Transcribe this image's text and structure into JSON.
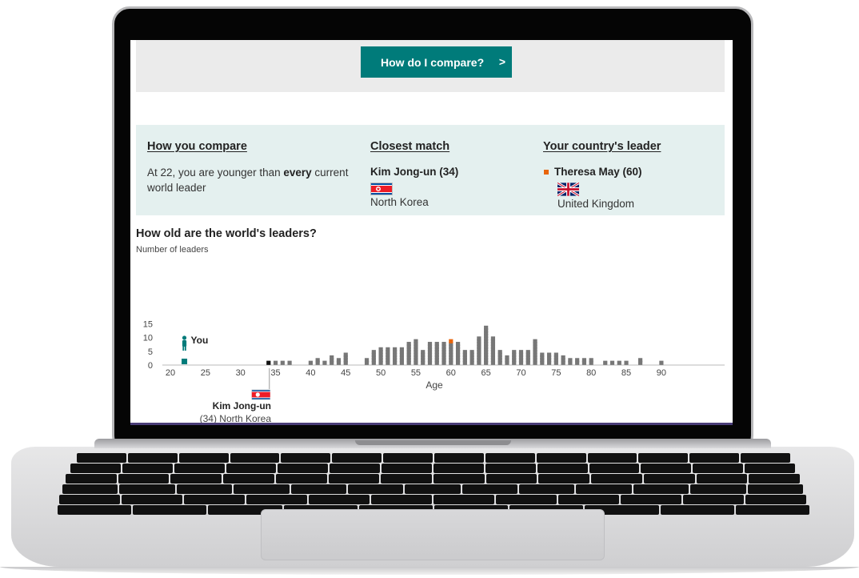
{
  "top": {
    "compare_button": "How do I compare?",
    "compare_chevron": ">"
  },
  "panel": {
    "col1": {
      "heading": "How you compare",
      "text_pre": "At 22, you are younger than ",
      "text_bold": "every",
      "text_post": " current world leader"
    },
    "col2": {
      "heading": "Closest match",
      "name": "Kim Jong-un (34)",
      "country": "North Korea"
    },
    "col3": {
      "heading": "Your country's leader",
      "name": "Theresa May (60)",
      "country": "United Kingdom"
    }
  },
  "chart_title": "How old are the world's leaders?",
  "chart_subtitle": "Number of leaders",
  "you_label": "You",
  "kim_annotation": {
    "name": "Kim Jong-un",
    "detail": "(34) North Korea"
  },
  "colors": {
    "accent": "#007b7a",
    "bar": "#777777",
    "highlight_uk": "#e8650c",
    "highlight_kim": "#111111",
    "you": "#007b7a"
  },
  "chart_data": {
    "type": "bar",
    "title": "How old are the world's leaders?",
    "ylabel": "Number of leaders",
    "xlabel": "Age",
    "ylim": [
      0,
      15
    ],
    "y_ticks": [
      0,
      5,
      10,
      15
    ],
    "x_ticks": [
      20,
      25,
      30,
      35,
      40,
      45,
      50,
      55,
      60,
      65,
      70,
      75,
      80,
      85,
      90
    ],
    "x": [
      34,
      35,
      36,
      37,
      40,
      41,
      42,
      43,
      44,
      45,
      48,
      49,
      50,
      51,
      52,
      53,
      54,
      55,
      56,
      57,
      58,
      59,
      60,
      61,
      62,
      63,
      64,
      65,
      66,
      67,
      68,
      69,
      70,
      71,
      72,
      73,
      74,
      75,
      76,
      77,
      78,
      79,
      80,
      82,
      83,
      84,
      85,
      87,
      90
    ],
    "values": [
      1,
      1,
      1,
      1,
      1,
      2,
      1,
      3,
      2,
      4,
      2,
      5,
      6,
      6,
      6,
      6,
      8,
      9,
      5,
      8,
      8,
      8,
      9,
      8,
      5,
      5,
      10,
      14,
      10,
      5,
      3,
      5,
      5,
      5,
      9,
      4,
      4,
      4,
      3,
      2,
      2,
      2,
      2,
      1,
      1,
      1,
      1,
      2,
      1
    ],
    "highlights": {
      "you_age": 22,
      "kim_age": 34,
      "uk_age": 60
    }
  }
}
